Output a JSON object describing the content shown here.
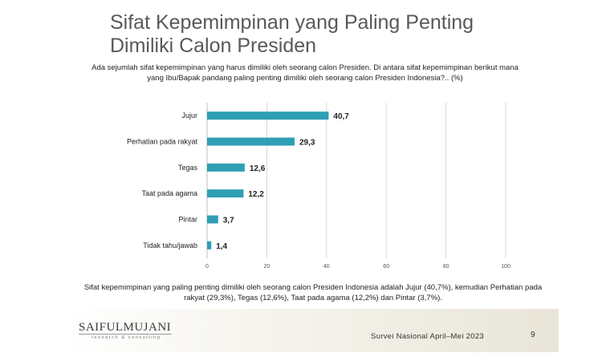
{
  "slide": {
    "title_line1": "Sifat Kepemimpinan yang Paling Penting",
    "title_line2": "Dimiliki Calon Presiden",
    "question": "Ada sejumlah sifat kepemimpinan yang harus dimiliki oleh seorang calon Presiden. Di antara sifat kepemimpinan berikut mana yang Ibu/Bapak pandang paling penting dimiliki oleh seorang calon Presiden Indonesia?.. (%)",
    "summary": "Sifat kepemimpinan yang paling penting dimiliki oleh seorang calon Presiden Indonesia adalah Jujur (40,7%), kemudian Perhatian pada rakyat (29,3%), Tegas (12,6%), Taat pada agama (12,2%) dan Pintar (3,7%)."
  },
  "footer": {
    "logo_main": "SAIFULMUJANI",
    "logo_sub": "research & consulting",
    "survey": "Survei Nasional April–Mei 2023",
    "page": "9"
  },
  "colors": {
    "bar": "#2e9fb4",
    "gridline": "#d9d9d9",
    "axis": "#bfbfbf"
  },
  "chart_data": {
    "type": "bar",
    "orientation": "horizontal",
    "categories": [
      "Jujur",
      "Perhatian pada rakyat",
      "Tegas",
      "Taat pada agama",
      "Pintar",
      "Tidak tahu/jawab"
    ],
    "values": [
      40.7,
      29.3,
      12.6,
      12.2,
      3.7,
      1.4
    ],
    "data_labels": [
      "40,7",
      "29,3",
      "12,6",
      "12,2",
      "3,7",
      "1,4"
    ],
    "xlim": [
      0,
      100
    ],
    "xticks": [
      0,
      20,
      40,
      60,
      80,
      100
    ],
    "grid": true,
    "legend": "none"
  }
}
